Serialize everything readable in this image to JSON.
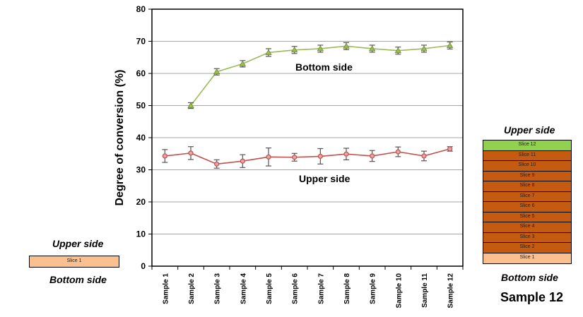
{
  "chart_data": {
    "type": "line",
    "ylabel": "Degree of conversion (%)",
    "xlabel": "",
    "ylim": [
      0,
      80
    ],
    "yticks": [
      0,
      10,
      20,
      30,
      40,
      50,
      60,
      70,
      80
    ],
    "grid": true,
    "categories": [
      "Sample 1",
      "Sample 2",
      "Sample 3",
      "Sample 4",
      "Sample 5",
      "Sample 6",
      "Sample 7",
      "Sample 8",
      "Sample 9",
      "Sample 10",
      "Sample 11",
      "Sample 12"
    ],
    "series": [
      {
        "name": "Bottom side",
        "color": "#9bbb59",
        "marker": "triangle",
        "values": [
          null,
          50,
          60.5,
          63,
          66.5,
          67.3,
          67.7,
          68.5,
          67.7,
          67.1,
          67.7,
          68.7
        ],
        "errors": [
          null,
          0.9,
          1.0,
          1.0,
          1.2,
          1.1,
          1.1,
          1.1,
          1.1,
          1.1,
          1.1,
          1.1
        ]
      },
      {
        "name": "Upper side",
        "color": "#c0504d",
        "marker": "circle",
        "values": [
          34.3,
          35.2,
          31.8,
          32.7,
          34.0,
          33.9,
          34.2,
          34.9,
          34.3,
          35.6,
          34.3,
          36.5
        ],
        "errors": [
          2.0,
          2.0,
          1.3,
          2.0,
          2.8,
          1.2,
          2.4,
          1.8,
          1.7,
          1.5,
          1.5,
          0.7
        ]
      }
    ],
    "annotations": {
      "bottom_series_label": "Bottom side",
      "upper_series_label": "Upper side"
    }
  },
  "left_diagram": {
    "top_label": "Upper side",
    "slice_label": "Slice 1",
    "bottom_label": "Bottom side",
    "fill": "#fac090"
  },
  "right_diagram": {
    "top_label": "Upper side",
    "bottom_label": "Bottom side",
    "caption": "Sample 12",
    "slices": [
      {
        "label": "Slice 12",
        "fill": "#92d050"
      },
      {
        "label": "Slice 11",
        "fill": "#c55a11"
      },
      {
        "label": "Slice 10",
        "fill": "#c55a11"
      },
      {
        "label": "Slice 9",
        "fill": "#c55a11"
      },
      {
        "label": "Slice 8",
        "fill": "#c55a11"
      },
      {
        "label": "Slice 7",
        "fill": "#c55a11"
      },
      {
        "label": "Slice 6",
        "fill": "#c55a11"
      },
      {
        "label": "Slice 5",
        "fill": "#c55a11"
      },
      {
        "label": "Slice 4",
        "fill": "#c55a11"
      },
      {
        "label": "Slice 3",
        "fill": "#c55a11"
      },
      {
        "label": "Slice 2",
        "fill": "#c55a11"
      },
      {
        "label": "Slice 1",
        "fill": "#fac090"
      }
    ]
  }
}
